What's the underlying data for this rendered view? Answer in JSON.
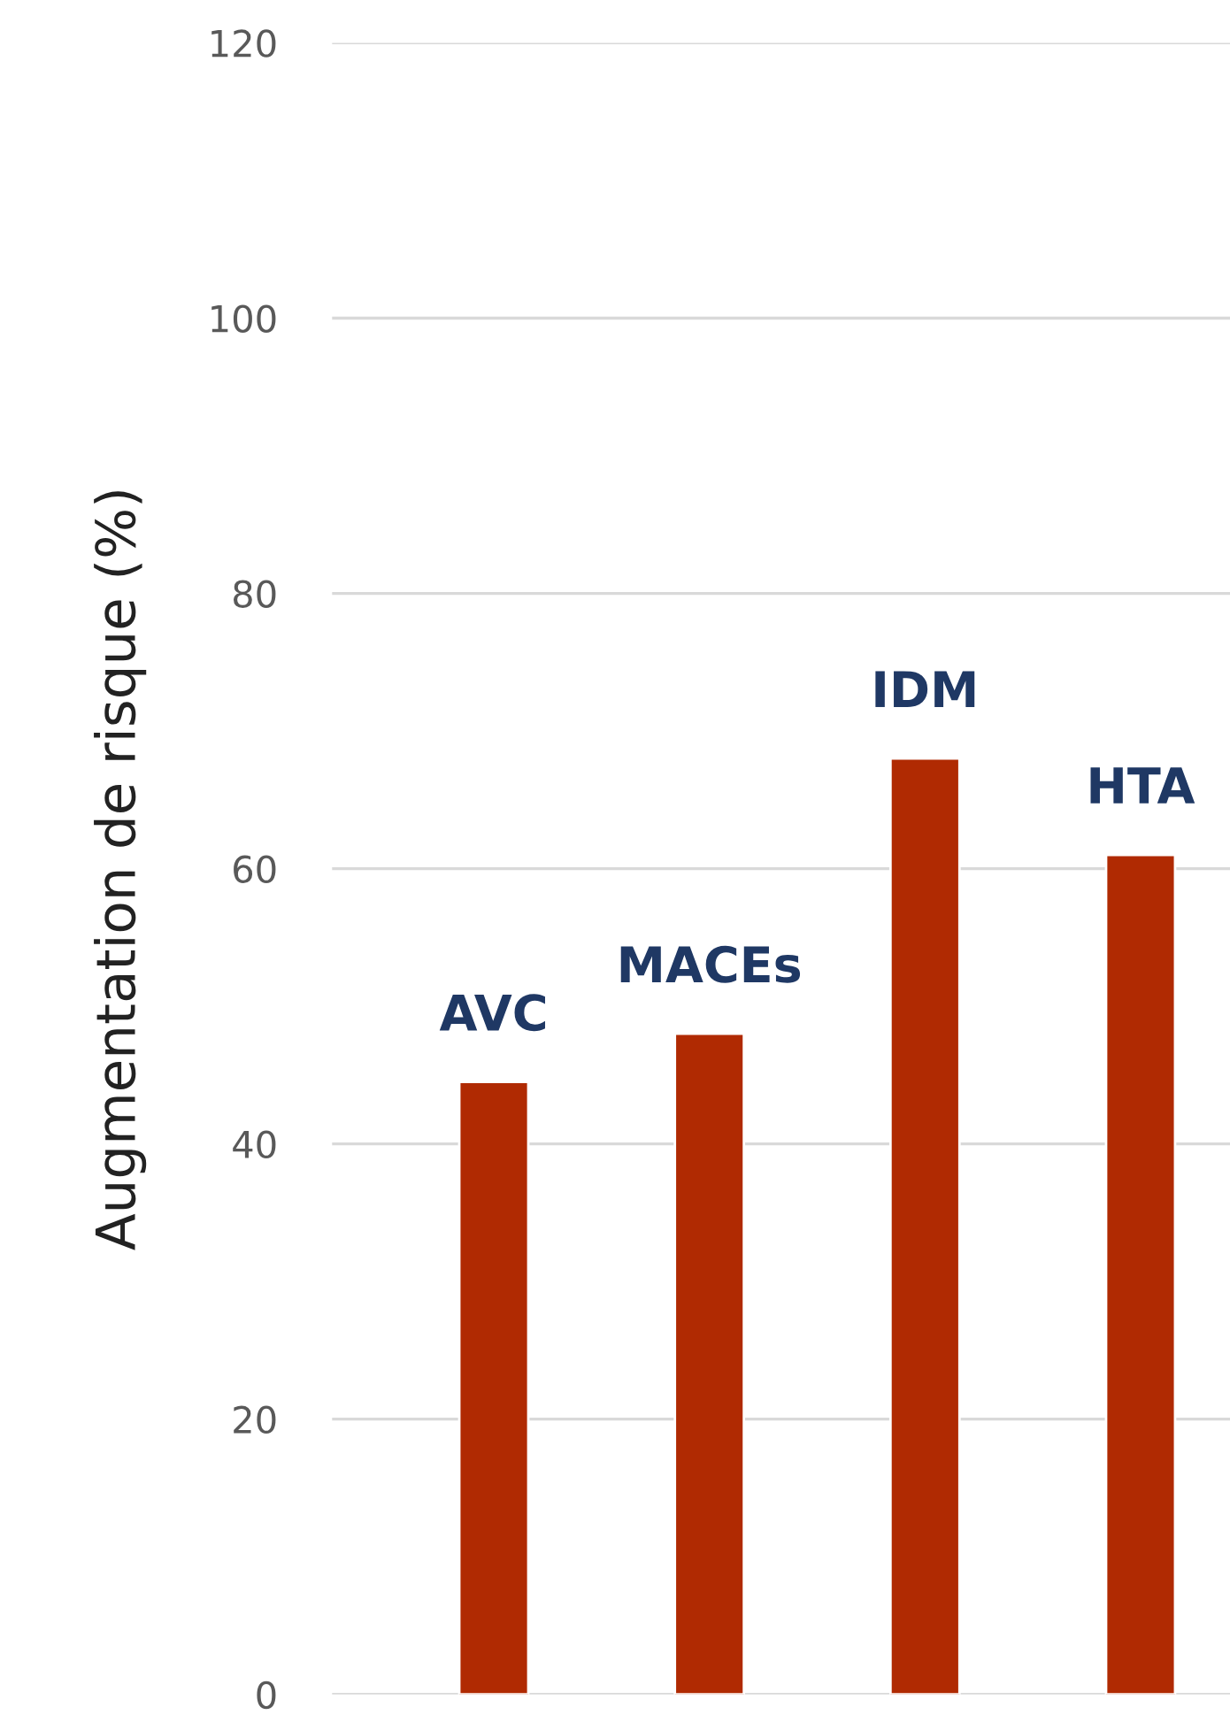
{
  "chart_data": {
    "type": "bar",
    "ylabel": "Augmentation de risque (%)",
    "categories": [
      "AVC",
      "MACEs",
      "IDM",
      "HTA"
    ],
    "values": [
      44.5,
      48,
      68,
      61
    ],
    "color": "#b02a02",
    "ylim": [
      0,
      120
    ],
    "yticks": [
      0,
      20,
      40,
      60,
      80,
      100,
      120
    ],
    "grid": "y"
  }
}
